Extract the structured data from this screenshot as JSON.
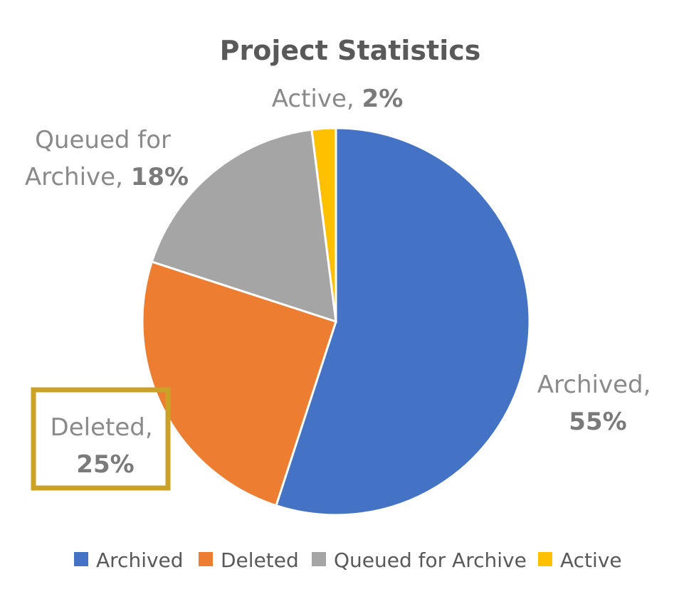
{
  "chart_data": {
    "type": "pie",
    "title": "Project Statistics",
    "categories": [
      "Archived",
      "Deleted",
      "Queued for Archive",
      "Active"
    ],
    "values": [
      55,
      25,
      18,
      2
    ],
    "colors": [
      "#4472C4",
      "#ED7D31",
      "#A5A5A5",
      "#FFC000"
    ],
    "value_labels": [
      "55%",
      "25%",
      "18%",
      "2%"
    ],
    "data_labels": [
      {
        "name_lines": [
          "Archived,"
        ],
        "pct": "55%"
      },
      {
        "name_lines": [
          "Deleted,"
        ],
        "pct": "25%"
      },
      {
        "name_lines": [
          "Queued for",
          "Archive,"
        ],
        "pct": "18%"
      },
      {
        "name_lines": [
          "Active,"
        ],
        "pct": "2%"
      }
    ],
    "legend_position": "bottom",
    "highlighted_category": "Deleted",
    "highlight_color": "#C9A227"
  }
}
